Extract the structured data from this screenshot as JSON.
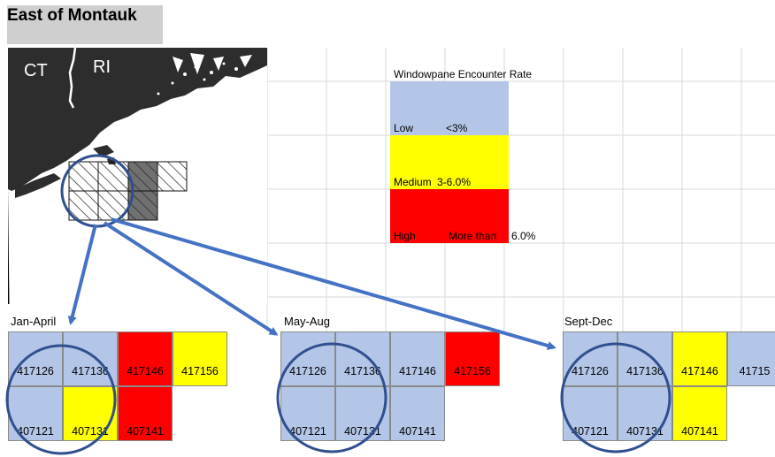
{
  "title": "East of Montauk",
  "map": {
    "labels": [
      "CT",
      "RI"
    ]
  },
  "legend": {
    "title": "Windowpane Encounter Rate",
    "items": [
      {
        "level": "Low",
        "range": "<3%",
        "color": "#b4c6e7"
      },
      {
        "level": "Medium",
        "range": "3-6.0%",
        "color": "#ffff00"
      },
      {
        "level": "High",
        "range": "More than",
        "range_suffix": "6.0%",
        "color": "#ff0000"
      }
    ]
  },
  "periods": [
    {
      "label": "Jan-April",
      "top_row": [
        {
          "id": "417126",
          "color": "#b4c6e7"
        },
        {
          "id": "417136",
          "color": "#b4c6e7"
        },
        {
          "id": "417146",
          "color": "#ff0000"
        },
        {
          "id": "417156",
          "color": "#ffff00"
        }
      ],
      "bottom_row": [
        {
          "id": "407121",
          "color": "#b4c6e7"
        },
        {
          "id": "407131",
          "color": "#ffff00"
        },
        {
          "id": "407141",
          "color": "#ff0000"
        }
      ]
    },
    {
      "label": "May-Aug",
      "top_row": [
        {
          "id": "417126",
          "color": "#b4c6e7"
        },
        {
          "id": "417136",
          "color": "#b4c6e7"
        },
        {
          "id": "417146",
          "color": "#b4c6e7"
        },
        {
          "id": "417156",
          "color": "#ff0000"
        }
      ],
      "bottom_row": [
        {
          "id": "407121",
          "color": "#b4c6e7"
        },
        {
          "id": "407131",
          "color": "#b4c6e7"
        },
        {
          "id": "407141",
          "color": "#b4c6e7"
        }
      ]
    },
    {
      "label": "Sept-Dec",
      "top_row": [
        {
          "id": "417126",
          "color": "#b4c6e7"
        },
        {
          "id": "417136",
          "color": "#b4c6e7"
        },
        {
          "id": "417146",
          "color": "#ffff00"
        },
        {
          "id": "41715",
          "color": "#b4c6e7"
        }
      ],
      "bottom_row": [
        {
          "id": "407121",
          "color": "#b4c6e7"
        },
        {
          "id": "407131",
          "color": "#b4c6e7"
        },
        {
          "id": "407141",
          "color": "#ffff00"
        }
      ]
    }
  ],
  "colors": {
    "gridline": "#d9d9d9",
    "arrow": "#4472c4",
    "circle": "#2f4f8f"
  }
}
